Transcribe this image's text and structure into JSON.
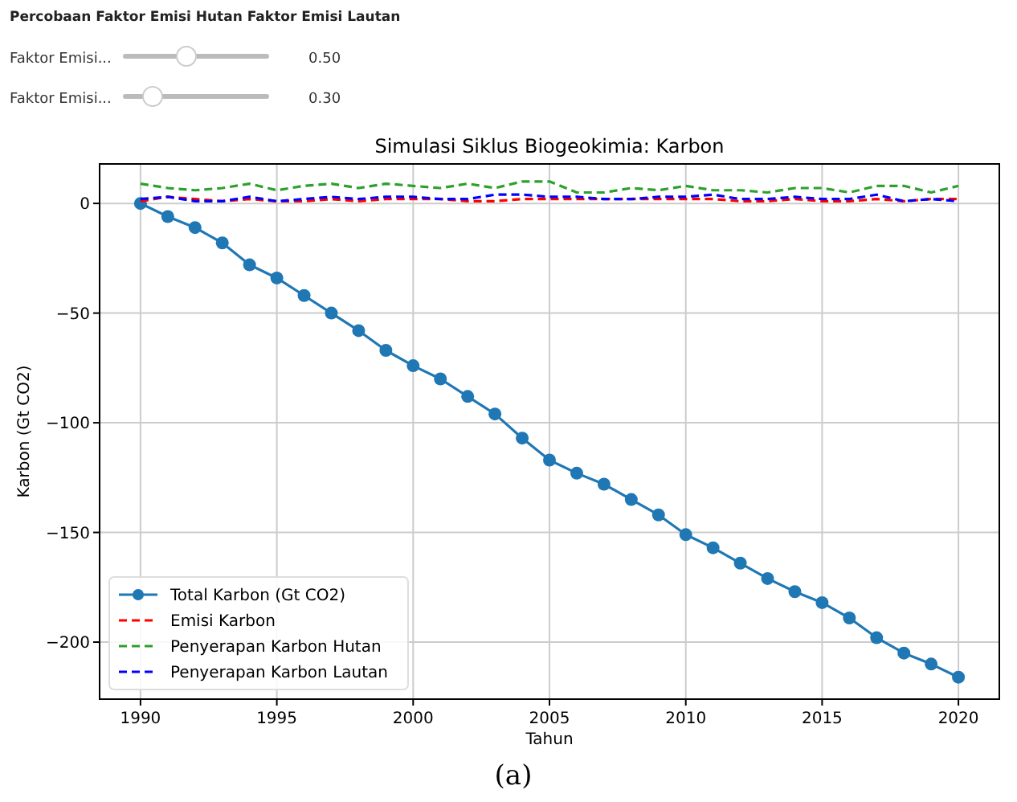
{
  "chart_data": {
    "type": "line",
    "title": "Simulasi Siklus Biogeokimia: Karbon",
    "xlabel": "Tahun",
    "ylabel": "Karbon (Gt CO2)",
    "annotations": [
      "Percobaan Faktor Emisi Hutan Faktor Emisi Lautan",
      "Faktor Emisi...",
      "0.50",
      "Faktor Emisi...",
      "0.30",
      "(a)"
    ],
    "x": [
      1990,
      1991,
      1992,
      1993,
      1994,
      1995,
      1996,
      1997,
      1998,
      1999,
      2000,
      2001,
      2002,
      2003,
      2004,
      2005,
      2006,
      2007,
      2008,
      2009,
      2010,
      2011,
      2012,
      2013,
      2014,
      2015,
      2016,
      2017,
      2018,
      2019,
      2020
    ],
    "series": [
      {
        "name": "Total Karbon (Gt CO2)",
        "color": "#1f77b4",
        "marker": "circle",
        "line_style": "solid",
        "values": [
          0,
          -6,
          -11,
          -18,
          -28,
          -34,
          -42,
          -50,
          -58,
          -67,
          -74,
          -80,
          -88,
          -96,
          -107,
          -117,
          -123,
          -128,
          -135,
          -142,
          -151,
          -157,
          -164,
          -171,
          -177,
          -182,
          -189,
          -198,
          -205,
          -210,
          -216
        ]
      },
      {
        "name": "Emisi Karbon",
        "color": "#ff0000",
        "marker": "none",
        "line_style": "dashed",
        "values": [
          1,
          3,
          2,
          1,
          2,
          1,
          1,
          2,
          1,
          2,
          2,
          2,
          1,
          1,
          2,
          2,
          2,
          2,
          2,
          2,
          2,
          2,
          1,
          1,
          2,
          1,
          1,
          2,
          1,
          2,
          2
        ]
      },
      {
        "name": "Penyerapan Karbon Hutan",
        "color": "#2ca02c",
        "marker": "none",
        "line_style": "dashed",
        "values": [
          9,
          7,
          6,
          7,
          9,
          6,
          8,
          9,
          7,
          9,
          8,
          7,
          9,
          7,
          10,
          10,
          5,
          5,
          7,
          6,
          8,
          6,
          6,
          5,
          7,
          7,
          5,
          8,
          8,
          5,
          8
        ]
      },
      {
        "name": "Penyerapan Karbon Lautan",
        "color": "#0000ff",
        "marker": "none",
        "line_style": "dashed",
        "values": [
          2,
          3,
          1,
          1,
          3,
          1,
          2,
          3,
          2,
          3,
          3,
          2,
          2,
          4,
          4,
          3,
          3,
          2,
          2,
          3,
          3,
          4,
          2,
          2,
          3,
          2,
          2,
          4,
          1,
          2,
          1
        ]
      }
    ],
    "xlim": [
      1988.5,
      2021.5
    ],
    "xticks": [
      1990,
      1995,
      2000,
      2005,
      2010,
      2015,
      2020
    ],
    "ylim": [
      -226,
      18
    ],
    "yticks": [
      0,
      -50,
      -100,
      -150,
      -200
    ],
    "grid": true,
    "legend": "bottom left"
  }
}
